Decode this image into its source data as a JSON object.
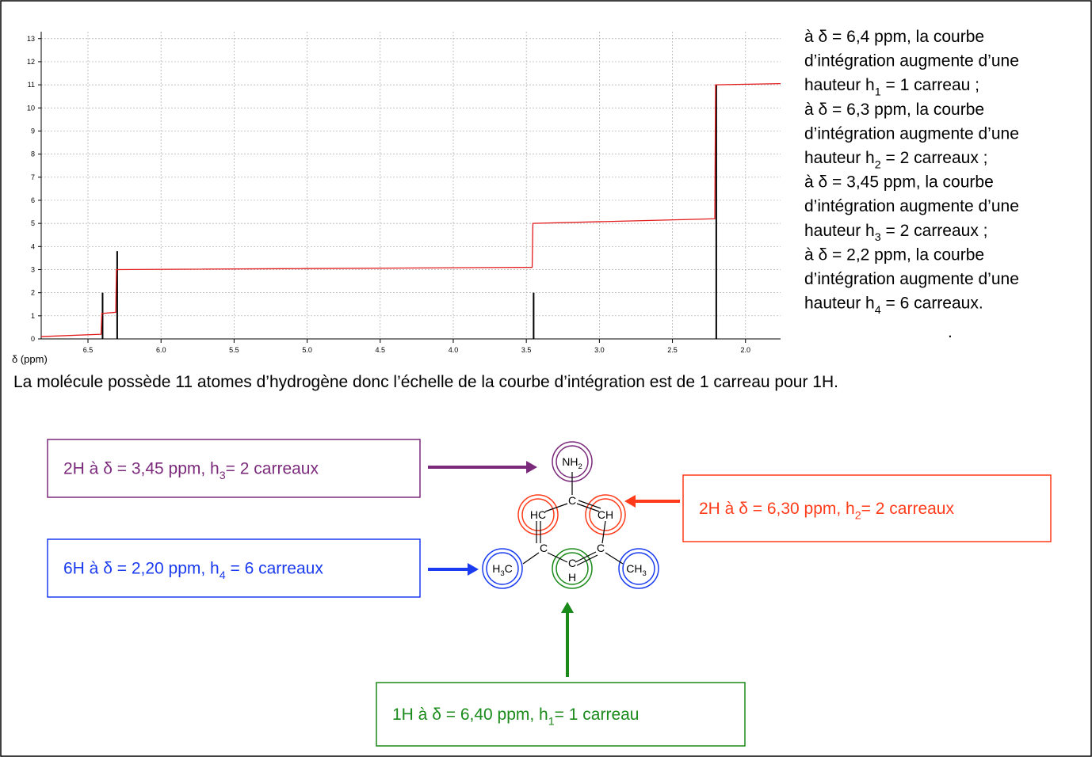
{
  "chart_data": {
    "type": "line",
    "xlabel": "δ (ppm)",
    "x": [
      6.82,
      6.41,
      6.405,
      6.31,
      6.305,
      3.46,
      3.455,
      2.21,
      2.205,
      1.76
    ],
    "series": [
      {
        "color": "#e31a1a",
        "values": [
          0.1,
          0.2,
          1.1,
          1.15,
          3.0,
          3.1,
          5.0,
          5.2,
          11.0,
          11.05
        ]
      }
    ],
    "peaks": {
      "color": "#000000",
      "x": [
        6.4,
        6.3,
        3.45,
        2.2
      ],
      "values": [
        2.0,
        3.8,
        2.0,
        11.0
      ]
    },
    "xlim": [
      6.82,
      1.76
    ],
    "ylim": [
      0,
      13.3
    ],
    "xticks": [
      6.5,
      {
        "value": 6,
        "label": "6.0"
      },
      5.5,
      {
        "value": 5,
        "label": "5.0"
      },
      4.5,
      {
        "value": 4,
        "label": "4.0"
      },
      3.5,
      {
        "value": 3,
        "label": "3.0"
      },
      2.5,
      {
        "value": 2,
        "label": "2.0"
      }
    ],
    "yticks": [
      0,
      1,
      2,
      3,
      4,
      5,
      6,
      7,
      8,
      9,
      10,
      11,
      12,
      13
    ],
    "grid": true
  },
  "notes": [
    {
      "lines": [
        "à δ = 6,4 ppm, la courbe",
        "d’intégration augmente d’une"
      ],
      "text": "hauteur h",
      "sub": "1",
      "end": " = 1 carreau ;"
    },
    {
      "lines": [
        "à δ = 6,3 ppm, la courbe",
        "d’intégration augmente d’une"
      ],
      "text": "hauteur h",
      "sub": "2",
      "end": " = 2 carreaux ;"
    },
    {
      "lines": [
        "à δ = 3,45 ppm, la courbe",
        "d’intégration augmente d’une"
      ],
      "text": "hauteur h",
      "sub": "3",
      "end": " = 2 carreaux ;"
    },
    {
      "lines": [
        "à δ = 2,2 ppm, la courbe",
        "d’intégration augmente d’une"
      ],
      "text": "hauteur h",
      "sub": "4",
      "end": " = 6 carreaux."
    }
  ],
  "dot": ".",
  "sentence": "La molécule possède 11 atomes d’hydrogène donc l’échelle de la courbe d’intégration est de 1 carreau pour 1H.",
  "callouts": [
    {
      "text": "2H à δ = 3,45 ppm, h",
      "sub": "3",
      "end": "= 2 carreaux",
      "color": "#7b2a7b"
    },
    {
      "text": "2H à δ = 6,30 ppm, h",
      "sub": "2",
      "end": "= 2 carreaux",
      "color": "#ff3b1a"
    },
    {
      "text": "6H à  δ = 2,20 ppm, h",
      "sub": "4",
      "end": " = 6 carreaux",
      "color": "#1a3bf0"
    },
    {
      "text": "1H à δ = 6,40 ppm, h",
      "sub": "1",
      "end": "= 1 carreau",
      "color": "#1a8a1a"
    }
  ],
  "molecule": {
    "atoms": [
      {
        "text": "NH",
        "sub": "2"
      },
      {
        "text": "C"
      },
      {
        "text": "HC"
      },
      {
        "text": "CH"
      },
      {
        "text": "C"
      },
      {
        "text": "C"
      },
      {
        "text": "H",
        "sub": "3",
        "end": "C"
      },
      {
        "text": "C"
      },
      {
        "text": "H"
      },
      {
        "text": "CH",
        "sub": "3"
      }
    ]
  }
}
